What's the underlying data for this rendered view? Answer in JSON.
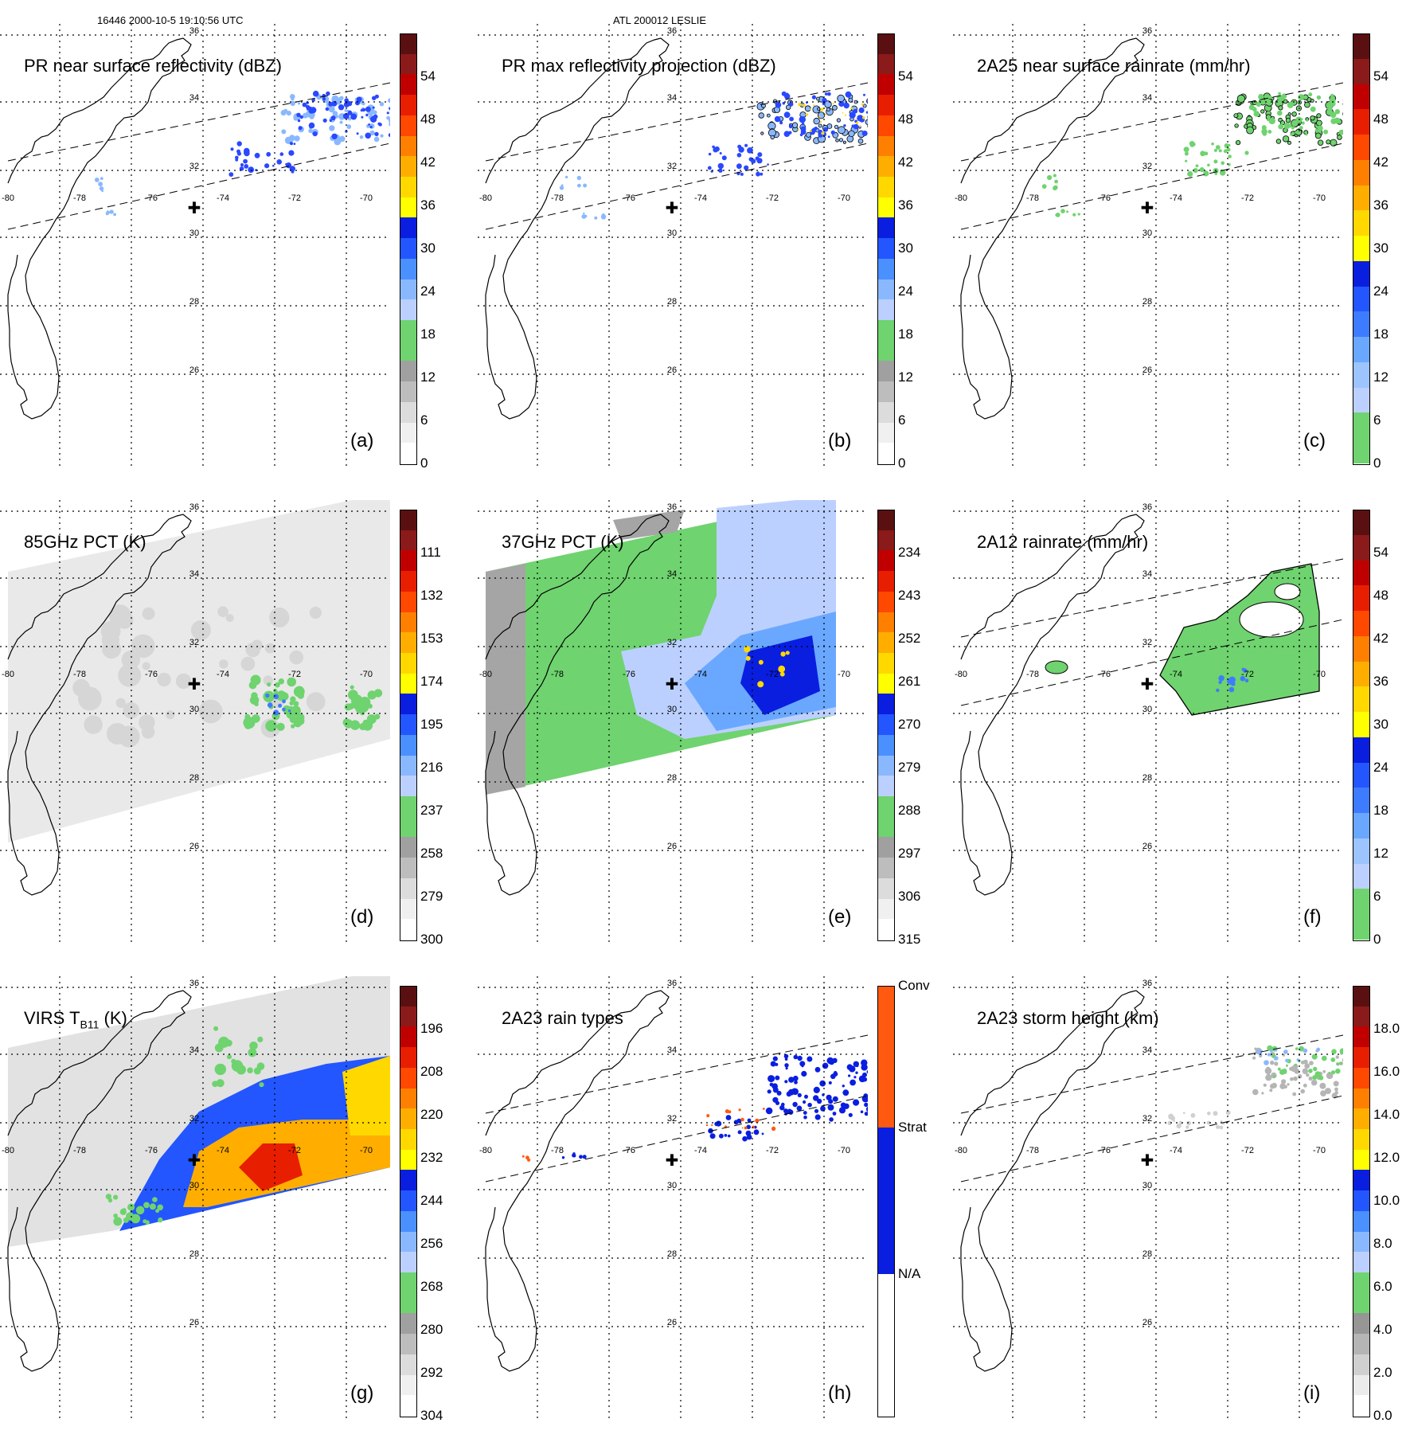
{
  "header": {
    "orbit_info": "16446 2000-10-5 19:10:56 UTC",
    "storm_info": "ATL 200012 LESLIE"
  },
  "map": {
    "lon_labels": [
      "-80",
      "-78",
      "-76",
      "-74",
      "-72",
      "-70"
    ],
    "lat_labels": [
      "36",
      "34",
      "32",
      "30",
      "28",
      "26"
    ]
  },
  "panels": [
    {
      "id": "a",
      "title": "PR near surface reflectivity (dBZ)",
      "label": "(a)",
      "colorbar": "dbz",
      "ticks": [
        "54",
        "48",
        "42",
        "36",
        "30",
        "24",
        "18",
        "12",
        "6",
        "0"
      ],
      "field": "swath_sparse",
      "swath": true
    },
    {
      "id": "b",
      "title": "PR max reflectivity projection (dBZ)",
      "label": "(b)",
      "colorbar": "dbz",
      "ticks": [
        "54",
        "48",
        "42",
        "36",
        "30",
        "24",
        "18",
        "12",
        "6",
        "0"
      ],
      "field": "swath_sparse_dark",
      "swath": true
    },
    {
      "id": "c",
      "title": "2A25 near surface rainrate (mm/hr)",
      "label": "(c)",
      "colorbar": "rain",
      "ticks": [
        "54",
        "48",
        "42",
        "36",
        "30",
        "24",
        "18",
        "12",
        "6",
        "0"
      ],
      "field": "swath_green",
      "swath": true
    },
    {
      "id": "d",
      "title": "85GHz PCT (K)",
      "label": "(d)",
      "colorbar": "pct",
      "ticks": [
        "111",
        "132",
        "153",
        "174",
        "195",
        "216",
        "237",
        "258",
        "279",
        "300"
      ],
      "field": "pct85",
      "swath": false
    },
    {
      "id": "e",
      "title": "37GHz PCT (K)",
      "label": "(e)",
      "colorbar": "pct",
      "ticks": [
        "234",
        "243",
        "252",
        "261",
        "270",
        "279",
        "288",
        "297",
        "306",
        "315"
      ],
      "field": "pct37",
      "swath": false
    },
    {
      "id": "f",
      "title": "2A12 rainrate (mm/hr)",
      "label": "(f)",
      "colorbar": "rain",
      "ticks": [
        "54",
        "48",
        "42",
        "36",
        "30",
        "24",
        "18",
        "12",
        "6",
        "0"
      ],
      "field": "rain2a12",
      "swath": true
    },
    {
      "id": "g",
      "title_main": "VIRS T",
      "title_sub": "B11",
      "title_unit": " (K)",
      "label": "(g)",
      "colorbar": "virs",
      "ticks": [
        "196",
        "208",
        "220",
        "232",
        "244",
        "256",
        "268",
        "280",
        "292",
        "304"
      ],
      "field": "virs",
      "swath": false
    },
    {
      "id": "h",
      "title": "2A23 rain types",
      "label": "(h)",
      "colorbar": "types",
      "ticks": [
        "Conv",
        "Strat",
        "N/A"
      ],
      "field": "types",
      "swath": true
    },
    {
      "id": "i",
      "title": "2A23 storm height (km)",
      "label": "(i)",
      "colorbar": "height",
      "ticks": [
        "18.0",
        "16.0",
        "14.0",
        "12.0",
        "10.0",
        "8.0",
        "6.0",
        "4.0",
        "2.0",
        "0.0"
      ],
      "field": "height",
      "swath": true
    }
  ],
  "colors": {
    "dbz": [
      "#ffffff",
      "#f0f0f0",
      "#dcdcdc",
      "#bdbdbd",
      "#a0a0a0",
      "#6fd36f",
      "#6fd36f",
      "#bcd0ff",
      "#8ab8ff",
      "#4a90ff",
      "#2356ff",
      "#0a1ee0",
      "#ffff00",
      "#ffd800",
      "#ffae00",
      "#ff8000",
      "#ff4800",
      "#e81e00",
      "#c00000",
      "#8b1a1a",
      "#5a1010"
    ],
    "rain": [
      "#6fd36f",
      "#6fd36f",
      "#bcd0ff",
      "#9cc4ff",
      "#6aa8ff",
      "#3d7cff",
      "#2356ff",
      "#0a1ee0",
      "#ffff00",
      "#ffd800",
      "#ffae00",
      "#ff8000",
      "#ff4800",
      "#e81e00",
      "#c00000",
      "#8b1a1a",
      "#5a1010"
    ],
    "height": [
      "#ffffff",
      "#ececec",
      "#d0d0d0",
      "#b5b5b5",
      "#969696",
      "#6fd36f",
      "#6fd36f",
      "#bcd0ff",
      "#8ab8ff",
      "#4a90ff",
      "#2356ff",
      "#0a1ee0",
      "#ffff00",
      "#ffd800",
      "#ffae00",
      "#ff8000",
      "#ff4800",
      "#e81e00",
      "#c00000",
      "#8b1a1a",
      "#5a1010"
    ],
    "types": [
      "#ffffff",
      "#0a1ee0",
      "#ff5a10"
    ]
  }
}
